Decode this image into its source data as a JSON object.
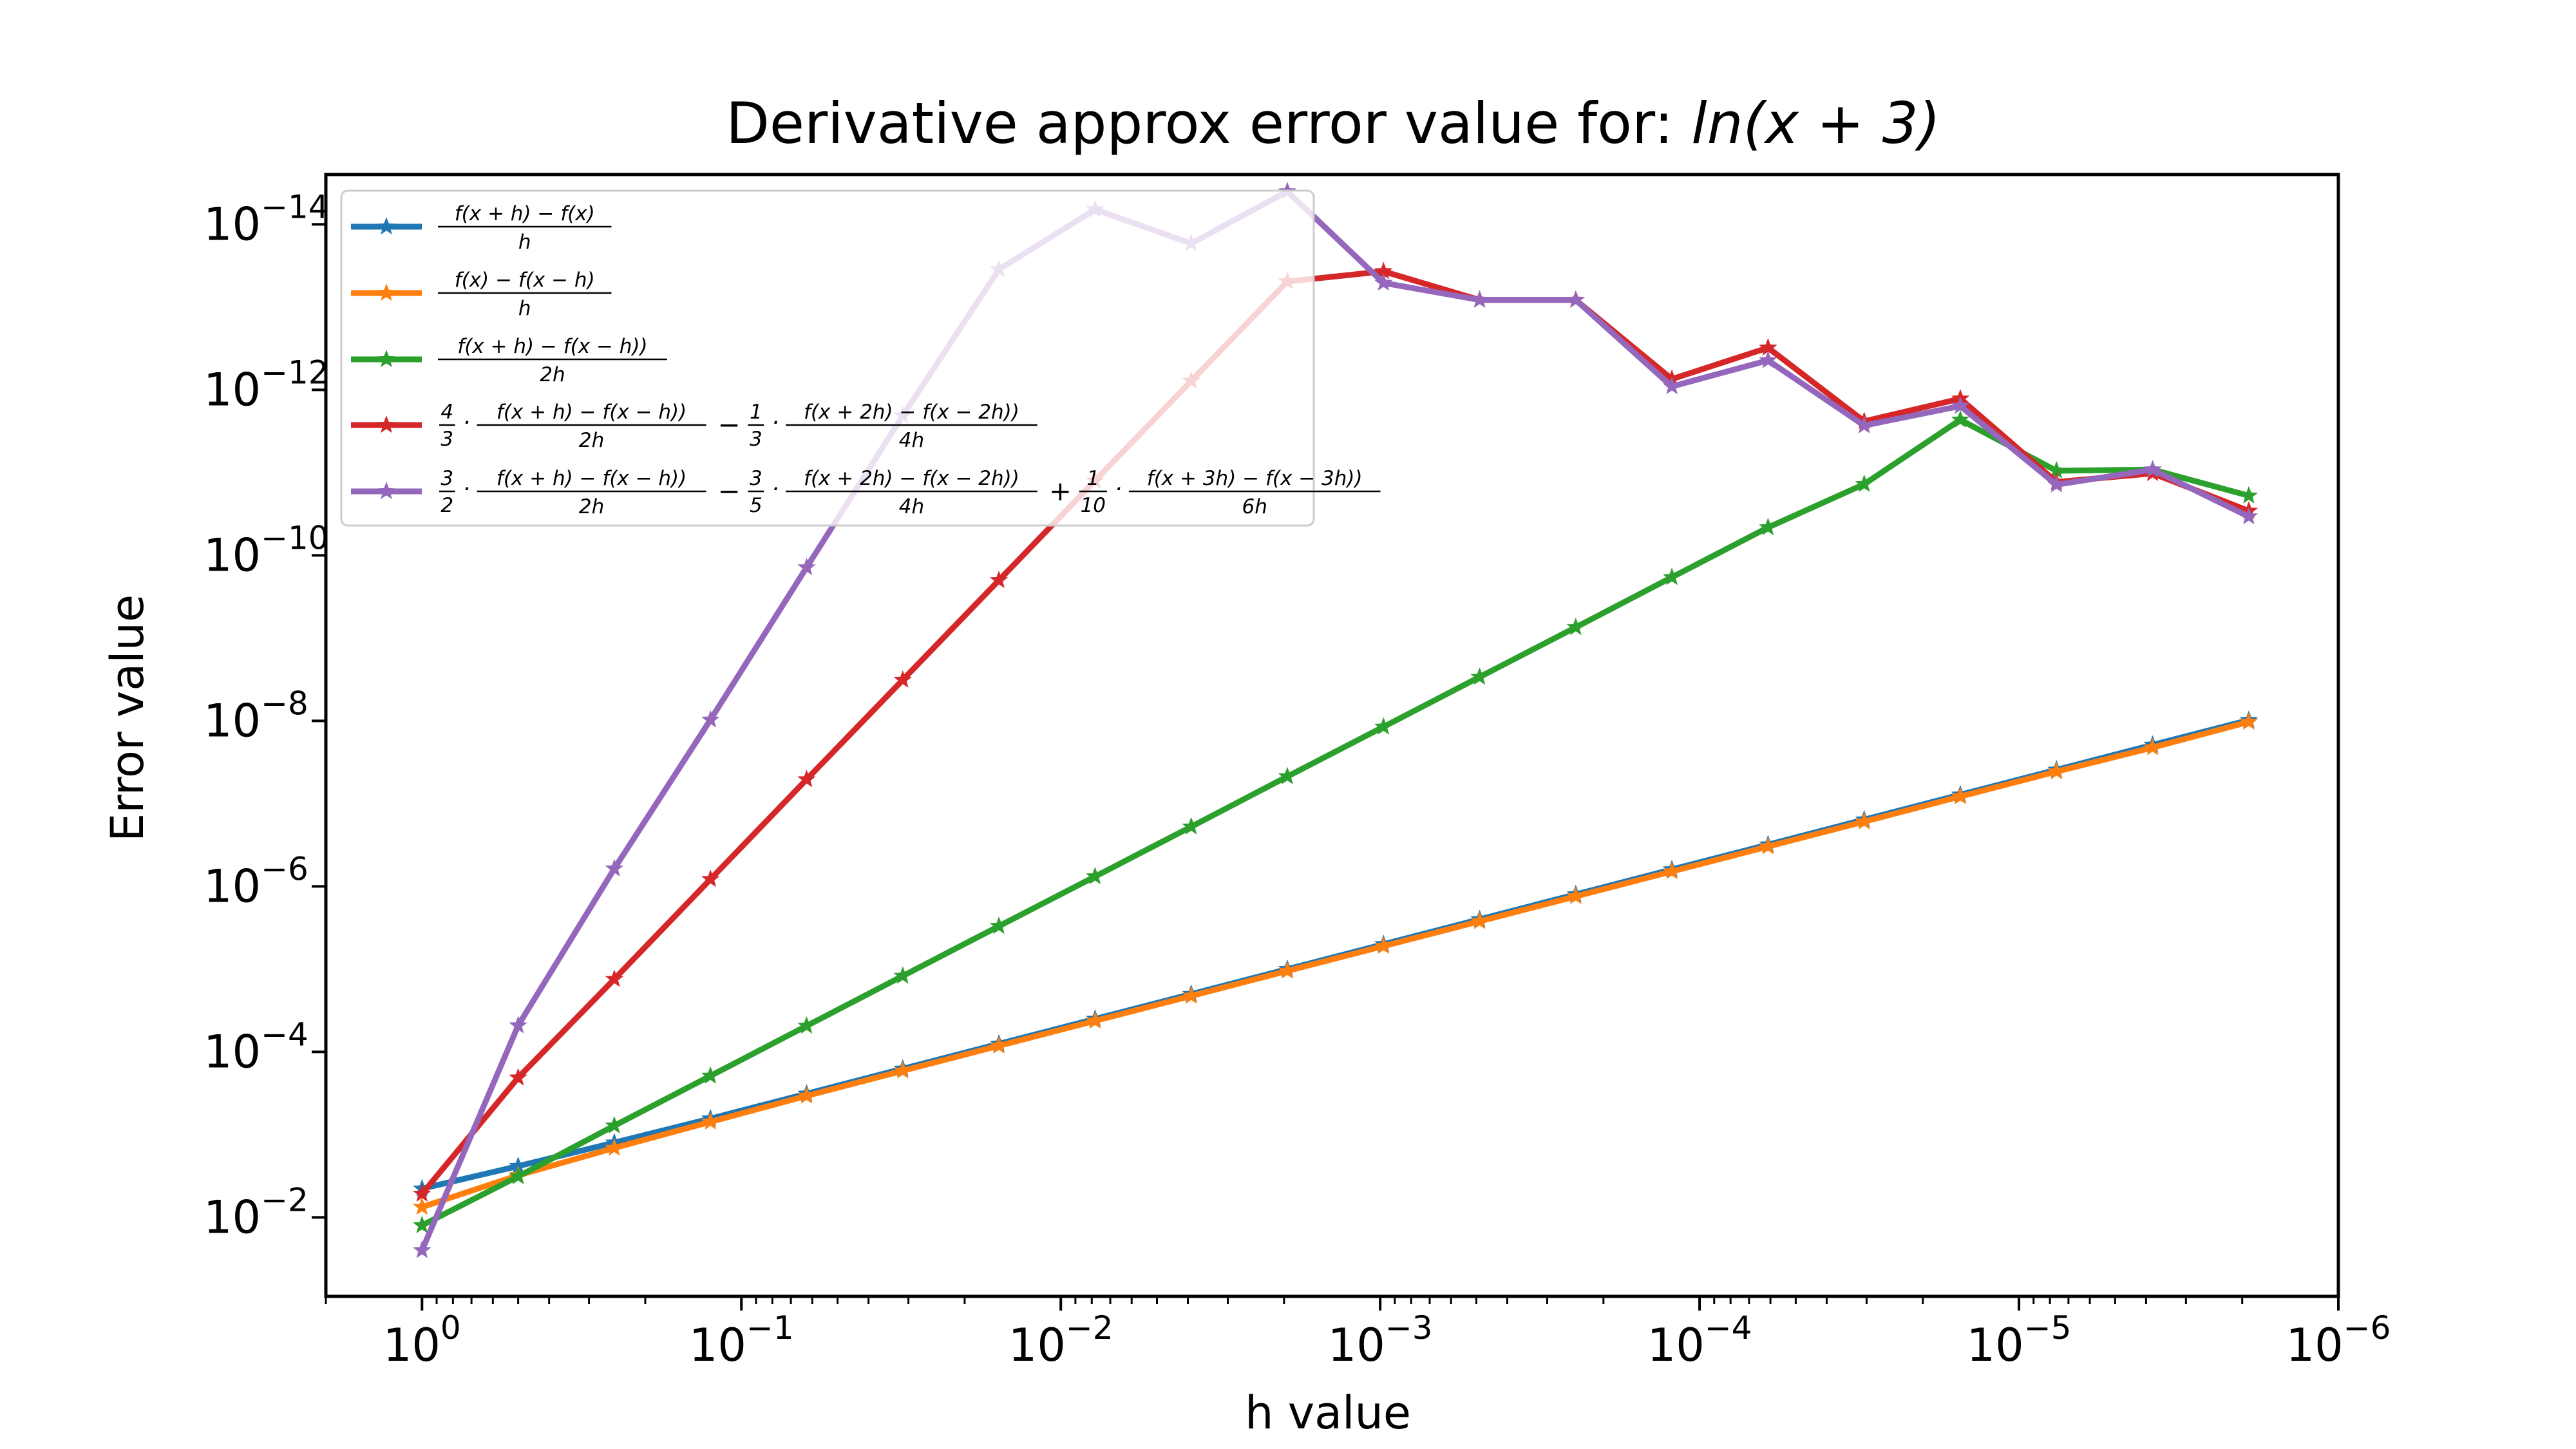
{
  "chart_data": {
    "type": "line",
    "title_prefix": "Derivative approx error value for: ",
    "title_math": "ln(x + 3)",
    "xlabel": "h value",
    "ylabel": "Error value",
    "x_scale": "log",
    "y_scale": "log",
    "x_inverted": true,
    "y_inverted": true,
    "xlim": [
      2.0,
      1e-06
    ],
    "ylim": [
      0.09,
      2.5e-15
    ],
    "x_ticks": [
      {
        "base": "10",
        "exp": "0",
        "value": 1
      },
      {
        "base": "10",
        "exp": "−1",
        "value": 0.1
      },
      {
        "base": "10",
        "exp": "−2",
        "value": 0.01
      },
      {
        "base": "10",
        "exp": "−3",
        "value": 0.001
      },
      {
        "base": "10",
        "exp": "−4",
        "value": 0.0001
      },
      {
        "base": "10",
        "exp": "−5",
        "value": 1e-05
      },
      {
        "base": "10",
        "exp": "−6",
        "value": 1e-06
      }
    ],
    "y_ticks": [
      {
        "base": "10",
        "exp": "−2",
        "value": 0.01
      },
      {
        "base": "10",
        "exp": "−4",
        "value": 0.0001
      },
      {
        "base": "10",
        "exp": "−6",
        "value": 1e-06
      },
      {
        "base": "10",
        "exp": "−8",
        "value": 1e-08
      },
      {
        "base": "10",
        "exp": "−10",
        "value": 1e-10
      },
      {
        "base": "10",
        "exp": "−12",
        "value": 1e-12
      },
      {
        "base": "10",
        "exp": "−14",
        "value": 1e-14
      }
    ],
    "legend_position": "upper-left",
    "x": [
      1,
      0.5,
      0.25,
      0.125,
      0.0625,
      0.03125,
      0.015625,
      0.0078125,
      0.00390625,
      0.001953125,
      0.0009765625,
      0.00048828125,
      0.000244140625,
      0.0001220703125,
      6.103515625e-05,
      3.0517578125e-05,
      1.52587890625e-05,
      7.62939453125e-06,
      3.814697265625e-06,
      1.9073486328125e-06
    ],
    "series": [
      {
        "color": "#1f77b4",
        "legend": {
          "parts": [
            {
              "num": "f(x + h) − f(x)",
              "den": "h"
            }
          ]
        },
        "values": [
          0.0045,
          0.0024,
          0.00125,
          0.00064,
          0.00032,
          0.00016,
          8e-05,
          4e-05,
          2e-05,
          1e-05,
          5e-06,
          2.5e-06,
          1.25e-06,
          6.25e-07,
          3.13e-07,
          1.56e-07,
          7.8e-08,
          3.9e-08,
          1.95e-08,
          9.8e-09
        ]
      },
      {
        "color": "#ff7f0e",
        "legend": {
          "parts": [
            {
              "num": "f(x) − f(x − h)",
              "den": "h"
            }
          ]
        },
        "values": [
          0.0075,
          0.0031,
          0.00145,
          0.0007,
          0.00034,
          0.000169,
          8.44e-05,
          4.22e-05,
          2.11e-05,
          1.05e-05,
          5.27e-06,
          2.64e-06,
          1.32e-06,
          6.6e-07,
          3.3e-07,
          1.65e-07,
          8.2e-08,
          4.1e-08,
          2.1e-08,
          1.03e-08
        ]
      },
      {
        "color": "#2ca02c",
        "legend": {
          "parts": [
            {
              "num": "f(x + h) − f(x − h))",
              "den": "2h"
            }
          ]
        },
        "values": [
          0.0125,
          0.0032,
          0.00078,
          0.000195,
          4.85e-05,
          1.21e-05,
          3.02e-06,
          7.6e-07,
          1.9e-07,
          4.7e-08,
          1.18e-08,
          2.95e-09,
          7.4e-10,
          1.84e-10,
          4.6e-11,
          1.38e-11,
          2.3e-12,
          9.5e-12,
          9.2e-12,
          1.9e-11
        ]
      },
      {
        "color": "#d62728",
        "legend": {
          "parts": [
            {
              "coef_num": "4",
              "coef_den": "3",
              "num": "f(x + h) − f(x − h))",
              "den": "2h"
            },
            {
              "op": "−",
              "coef_num": "1",
              "coef_den": "3",
              "num": "f(x + 2h) − f(x − 2h))",
              "den": "4h"
            }
          ]
        },
        "values": [
          0.0052,
          0.000205,
          1.32e-05,
          8.2e-07,
          5.1e-08,
          3.2e-09,
          2e-10,
          1.25e-11,
          7.8e-13,
          4.9e-14,
          3.7e-14,
          8.2e-14,
          8.2e-14,
          7.4e-13,
          3.1e-13,
          2.4e-12,
          1.28e-12,
          1.3e-11,
          1.02e-11,
          2.9e-11
        ]
      },
      {
        "color": "#9467bd",
        "legend": {
          "parts": [
            {
              "coef_num": "3",
              "coef_den": "2",
              "num": "f(x + h) − f(x − h))",
              "den": "2h"
            },
            {
              "op": "−",
              "coef_num": "3",
              "coef_den": "5",
              "num": "f(x + 2h) − f(x − 2h))",
              "den": "4h"
            },
            {
              "op": "+",
              "coef_num": "1",
              "coef_den": "10",
              "num": "f(x + 3h) − f(x − 3h))",
              "den": "6h"
            }
          ]
        },
        "values": [
          0.025,
          4.8e-05,
          6.1e-07,
          9.7e-09,
          1.4e-10,
          2.05e-12,
          3.5e-14,
          6.6e-15,
          1.7e-14,
          4e-15,
          5.1e-14,
          8.2e-14,
          8.2e-14,
          9.1e-13,
          4.4e-13,
          2.7e-12,
          1.57e-12,
          1.4e-11,
          9.2e-12,
          3.4e-11
        ]
      }
    ]
  }
}
